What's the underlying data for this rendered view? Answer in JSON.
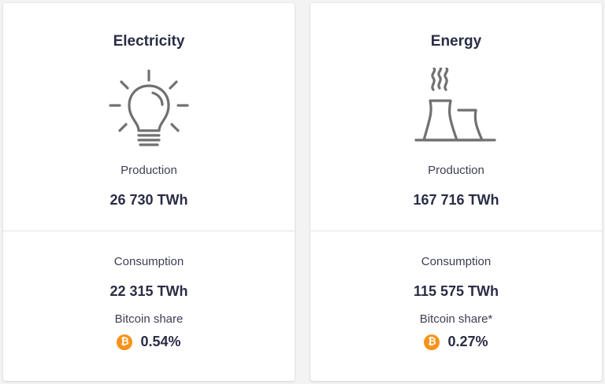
{
  "colors": {
    "accent_bitcoin": "#f7931a",
    "text_primary": "#2a2d45",
    "icon_gray": "#707070"
  },
  "cards": [
    {
      "title": "Electricity",
      "icon": "lightbulb-icon",
      "production_label": "Production",
      "production_value": "26 730 TWh",
      "consumption_label": "Consumption",
      "consumption_value": "22 315 TWh",
      "share_label": "Bitcoin share",
      "share_value": "0.54%"
    },
    {
      "title": "Energy",
      "icon": "power-plant-icon",
      "production_label": "Production",
      "production_value": "167 716 TWh",
      "consumption_label": "Consumption",
      "consumption_value": "115 575 TWh",
      "share_label": "Bitcoin share*",
      "share_value": "0.27%"
    }
  ],
  "bitcoin_symbol": "₿"
}
